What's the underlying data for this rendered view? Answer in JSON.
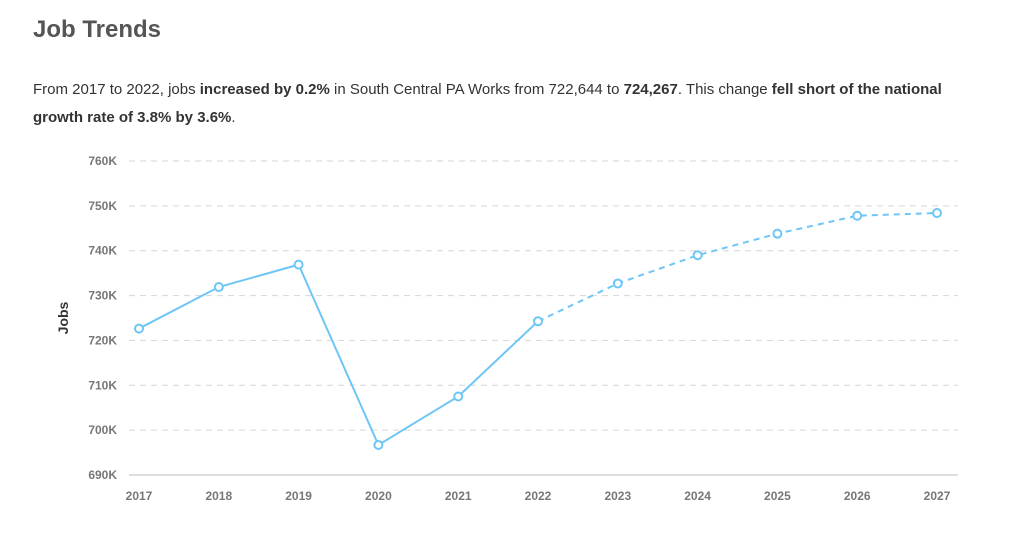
{
  "header": {
    "title": "Job Trends"
  },
  "summary": {
    "part1": "From 2017 to 2022, jobs ",
    "bold1": "increased by 0.2%",
    "part2": " in South Central PA Works from 722,644 to ",
    "bold2": "724,267",
    "part3": ". This change ",
    "bold3": "fell short of the national growth rate of 3.8% by 3.6%",
    "part4": "."
  },
  "chart_data": {
    "type": "line",
    "title": "",
    "xlabel": "",
    "ylabel": "Jobs",
    "x": [
      "2017",
      "2018",
      "2019",
      "2020",
      "2021",
      "2022",
      "2023",
      "2024",
      "2025",
      "2026",
      "2027"
    ],
    "series": [
      {
        "values": [
          722644,
          731900,
          736900,
          696700,
          707500,
          724267,
          732700,
          739000,
          743800,
          747800,
          748400
        ],
        "style_note_solid_through": "2022",
        "color": "#6ec6f5"
      }
    ],
    "ylim": [
      690000,
      760000
    ],
    "yticks": [
      690000,
      700000,
      710000,
      720000,
      730000,
      740000,
      750000,
      760000
    ],
    "ytick_labels": [
      "690K",
      "700K",
      "710K",
      "720K",
      "730K",
      "740K",
      "750K",
      "760K"
    ],
    "grid": true,
    "legend": "none"
  },
  "colors": {
    "line": "#6ec6f5",
    "grid": "#d6d6d6",
    "axis": "#bbbbbb"
  }
}
